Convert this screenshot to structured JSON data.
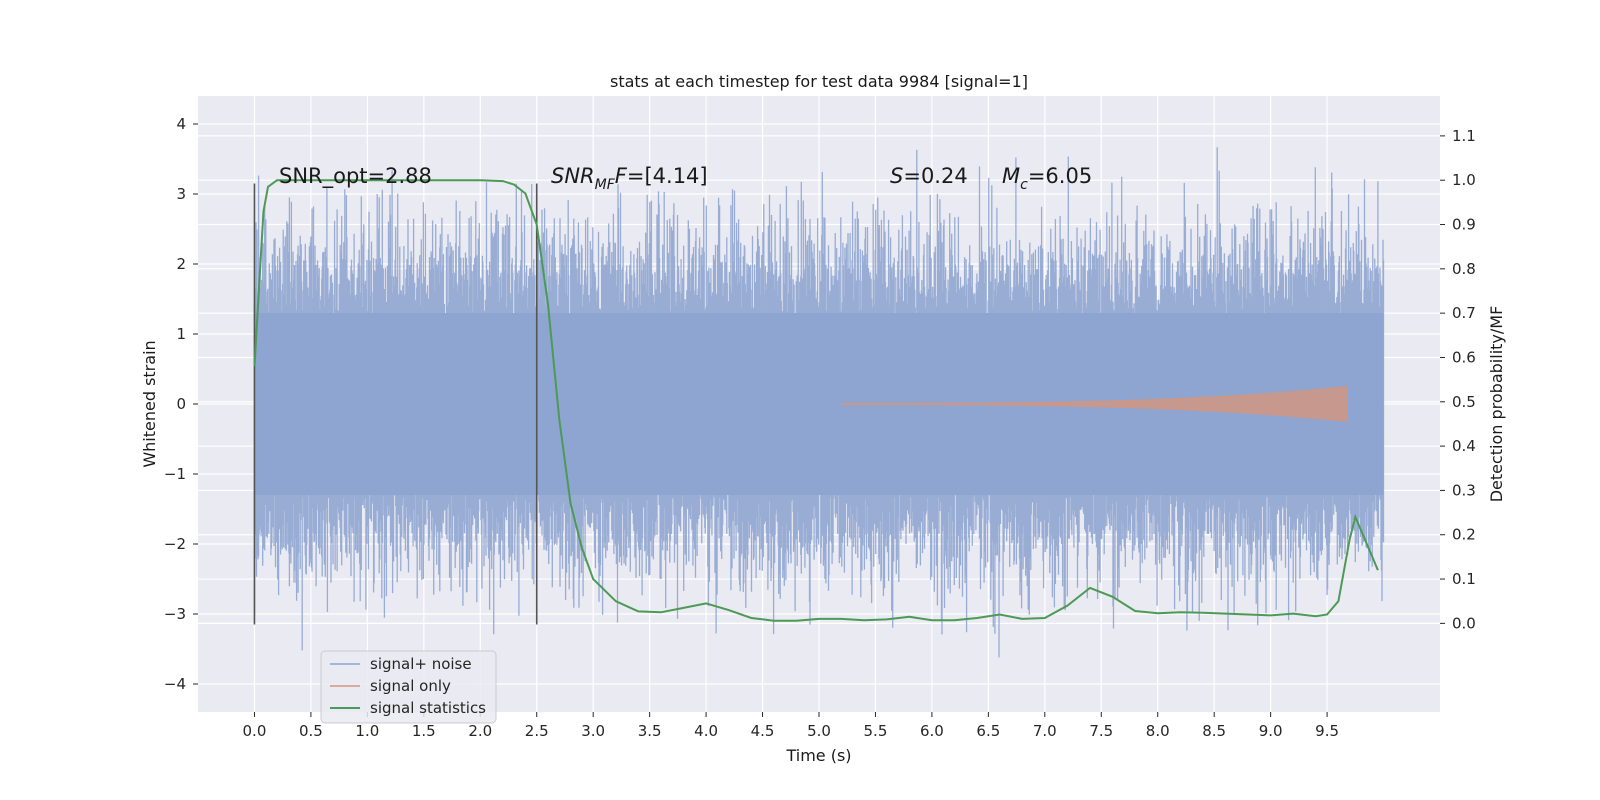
{
  "chart_data": {
    "type": "line",
    "title": "stats at each timestep for test data 9984 [signal=1]",
    "xlabel": "Time (s)",
    "ylabel": "Whitened strain",
    "ylabel_right": "Detection probability/MF",
    "xlim": [
      -0.5,
      10.5
    ],
    "ylim": [
      -4.4,
      4.4
    ],
    "ylim_right": [
      -0.2,
      1.19
    ],
    "x_ticks": [
      "0.0",
      "0.5",
      "1.0",
      "1.5",
      "2.0",
      "2.5",
      "3.0",
      "3.5",
      "4.0",
      "4.5",
      "5.0",
      "5.5",
      "6.0",
      "6.5",
      "7.0",
      "7.5",
      "8.0",
      "8.5",
      "9.0",
      "9.5"
    ],
    "y_ticks": [
      "4",
      "3",
      "2",
      "1",
      "0",
      "−1",
      "−2",
      "−3",
      "−4"
    ],
    "y_ticks_right": [
      "1.1",
      "1.0",
      "0.9",
      "0.8",
      "0.7",
      "0.6",
      "0.5",
      "0.4",
      "0.3",
      "0.2",
      "0.1",
      "0.0"
    ],
    "grid": true,
    "legend_position": "bottom-left",
    "vertical_markers": {
      "x": [
        0.0,
        2.5
      ],
      "y_range": [
        -3.15,
        3.15
      ]
    },
    "annotations": {
      "snr_opt": "SNR_opt=2.88",
      "snr_mf_prefix": "SNR",
      "snr_mf_sub": "MF",
      "snr_mf_suffix": "=[4.14]",
      "s_symbol": "S",
      "s_value": "=0.24",
      "mc_symbol": "M",
      "mc_sub": "c",
      "mc_value": "=6.05"
    },
    "series": [
      {
        "name": "signal+ noise",
        "color": "#8fa5d0",
        "axis": "left",
        "x_range": [
          0.0,
          10.0
        ],
        "envelope_max": 4.05,
        "envelope_min": -4.05,
        "dense_band": [
          -1.3,
          1.3
        ]
      },
      {
        "name": "signal only",
        "color": "#d4957d",
        "axis": "left",
        "x_range": [
          5.2,
          9.68
        ],
        "amplitude_start": 0.01,
        "amplitude_end": 0.25
      },
      {
        "name": "signal statistics",
        "color": "#4c9a55",
        "axis": "right",
        "x": [
          0.0,
          0.05,
          0.08,
          0.12,
          0.2,
          0.5,
          1.0,
          1.5,
          2.0,
          2.2,
          2.3,
          2.4,
          2.5,
          2.6,
          2.7,
          2.8,
          2.9,
          3.0,
          3.2,
          3.4,
          3.6,
          3.8,
          4.0,
          4.2,
          4.4,
          4.6,
          4.8,
          5.0,
          5.2,
          5.4,
          5.6,
          5.8,
          6.0,
          6.2,
          6.4,
          6.6,
          6.8,
          7.0,
          7.2,
          7.4,
          7.6,
          7.8,
          8.0,
          8.2,
          8.4,
          8.6,
          8.8,
          9.0,
          9.2,
          9.4,
          9.5,
          9.6,
          9.7,
          9.75,
          9.8,
          9.9,
          9.95
        ],
        "values": [
          0.58,
          0.8,
          0.93,
          0.985,
          1.0,
          1.0,
          1.0,
          1.0,
          1.0,
          0.998,
          0.99,
          0.97,
          0.9,
          0.72,
          0.46,
          0.27,
          0.17,
          0.1,
          0.05,
          0.027,
          0.025,
          0.035,
          0.045,
          0.03,
          0.012,
          0.006,
          0.006,
          0.01,
          0.01,
          0.007,
          0.009,
          0.015,
          0.007,
          0.007,
          0.012,
          0.02,
          0.01,
          0.012,
          0.04,
          0.08,
          0.06,
          0.028,
          0.023,
          0.025,
          0.024,
          0.022,
          0.02,
          0.018,
          0.022,
          0.016,
          0.02,
          0.05,
          0.19,
          0.24,
          0.21,
          0.15,
          0.12
        ]
      }
    ]
  }
}
